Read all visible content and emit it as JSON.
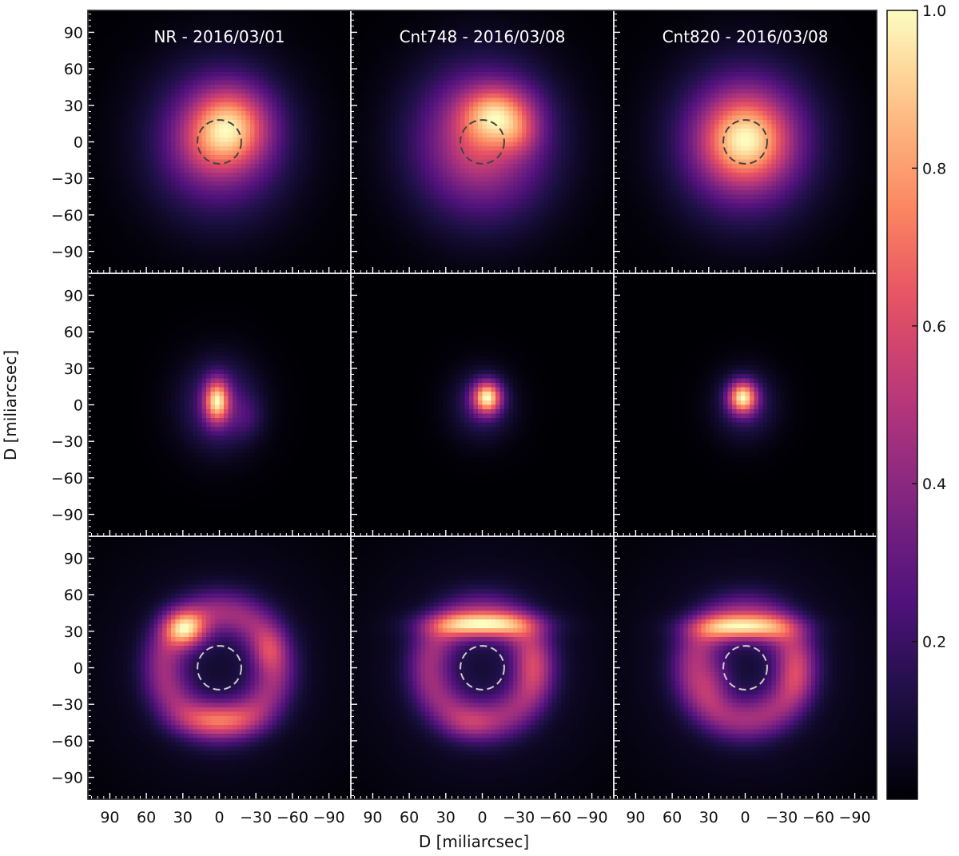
{
  "figure": {
    "ylabel": "D [miliarcsec]",
    "xlabel": "D [miliarcsec]",
    "colorbar": {
      "ticks": [
        "0.2",
        "0.4",
        "0.6",
        "0.8",
        "1.0"
      ],
      "tick_values": [
        0.2,
        0.4,
        0.6,
        0.8,
        1.0
      ],
      "vmin": 0.0,
      "vmax": 1.0,
      "colormap": "magma"
    }
  },
  "chart_data": {
    "type": "heatmap",
    "grid": {
      "rows": 3,
      "cols": 3
    },
    "column_titles": [
      "NR - 2016/03/01",
      "Cnt748 - 2016/03/08",
      "Cnt820 - 2016/03/08"
    ],
    "x_ticks": [
      90,
      60,
      30,
      0,
      -30,
      -60,
      -90
    ],
    "x_tick_labels": [
      "90",
      "60",
      "30",
      "0",
      "−30",
      "−60",
      "−90"
    ],
    "y_ticks": [
      90,
      60,
      30,
      0,
      -30,
      -60,
      -90
    ],
    "y_tick_labels": [
      "90",
      "60",
      "30",
      "0",
      "−30",
      "−60",
      "−90"
    ],
    "xlim": [
      108,
      -108
    ],
    "ylim": [
      -108,
      108
    ],
    "stellar_disk": {
      "center": [
        0,
        0
      ],
      "radius_mas": 18,
      "linestyle": "dashed"
    },
    "rows": [
      {
        "circle_color": "#444444",
        "panels": [
          {
            "peak": 1.0,
            "components": [
              {
                "x": -8,
                "y": 12,
                "sx": 22,
                "sy": 22,
                "amp": 0.62
              },
              {
                "x": 0,
                "y": 0,
                "sx": 40,
                "sy": 44,
                "amp": 0.4
              },
              {
                "x": 12,
                "y": -6,
                "sx": 20,
                "sy": 20,
                "amp": 0.1
              }
            ]
          },
          {
            "peak": 1.0,
            "components": [
              {
                "x": -12,
                "y": 22,
                "sx": 20,
                "sy": 16,
                "amp": 0.45
              },
              {
                "x": 0,
                "y": 0,
                "sx": 40,
                "sy": 44,
                "amp": 0.45
              },
              {
                "x": -30,
                "y": 5,
                "sx": 12,
                "sy": 12,
                "amp": 0.12
              },
              {
                "x": 5,
                "y": -10,
                "sx": 18,
                "sy": 18,
                "amp": 0.05
              }
            ]
          },
          {
            "peak": 1.0,
            "components": [
              {
                "x": 0,
                "y": 2,
                "sx": 24,
                "sy": 24,
                "amp": 0.55
              },
              {
                "x": 0,
                "y": 0,
                "sx": 40,
                "sy": 44,
                "amp": 0.45
              }
            ]
          }
        ]
      },
      {
        "circle_color": null,
        "panels": [
          {
            "peak": 1.0,
            "components": [
              {
                "x": 2,
                "y": 3,
                "sx": 7,
                "sy": 12,
                "amp": 0.75
              },
              {
                "x": 0,
                "y": 0,
                "sx": 22,
                "sy": 26,
                "amp": 0.28
              },
              {
                "x": -22,
                "y": -10,
                "sx": 10,
                "sy": 12,
                "amp": 0.1
              }
            ]
          },
          {
            "peak": 1.0,
            "components": [
              {
                "x": -4,
                "y": 6,
                "sx": 8,
                "sy": 9,
                "amp": 0.85
              },
              {
                "x": 0,
                "y": 0,
                "sx": 18,
                "sy": 20,
                "amp": 0.22
              }
            ]
          },
          {
            "peak": 1.0,
            "components": [
              {
                "x": 2,
                "y": 6,
                "sx": 8,
                "sy": 9,
                "amp": 0.85
              },
              {
                "x": 0,
                "y": 0,
                "sx": 18,
                "sy": 20,
                "amp": 0.22
              }
            ]
          }
        ]
      },
      {
        "circle_color": "#cccccc",
        "panels": [
          {
            "peak": 1.0,
            "components": [
              {
                "x": 28,
                "y": 32,
                "sx": 12,
                "sy": 10,
                "amp": 0.6
              },
              {
                "x": 0,
                "y": 0,
                "ring_r": 45,
                "ring_w": 13,
                "amp": 0.4
              },
              {
                "x": 0,
                "y": -42,
                "sx": 22,
                "sy": 9,
                "amp": 0.3
              },
              {
                "x": -40,
                "y": 14,
                "sx": 9,
                "sy": 12,
                "amp": 0.2
              },
              {
                "x": 0,
                "y": 0,
                "sx": 70,
                "sy": 70,
                "amp": 0.1
              }
            ]
          },
          {
            "peak": 1.0,
            "components": [
              {
                "x": 0,
                "y": 35,
                "sx": 30,
                "sy": 7,
                "amp": 0.6
              },
              {
                "x": 0,
                "y": 0,
                "ring_r": 43,
                "ring_w": 13,
                "amp": 0.35
              },
              {
                "x": -40,
                "y": 0,
                "sx": 10,
                "sy": 16,
                "amp": 0.15
              },
              {
                "x": 10,
                "y": -45,
                "sx": 14,
                "sy": 9,
                "amp": 0.12
              },
              {
                "x": 0,
                "y": 0,
                "sx": 70,
                "sy": 70,
                "amp": 0.1
              }
            ]
          },
          {
            "peak": 1.0,
            "components": [
              {
                "x": 2,
                "y": 33,
                "sx": 28,
                "sy": 7,
                "amp": 0.6
              },
              {
                "x": 0,
                "y": 0,
                "ring_r": 42,
                "ring_w": 13,
                "amp": 0.38
              },
              {
                "x": -40,
                "y": -5,
                "sx": 10,
                "sy": 16,
                "amp": 0.15
              },
              {
                "x": 25,
                "y": -10,
                "sx": 10,
                "sy": 14,
                "amp": 0.15
              },
              {
                "x": 0,
                "y": 0,
                "sx": 70,
                "sy": 70,
                "amp": 0.1
              }
            ]
          }
        ]
      }
    ]
  }
}
